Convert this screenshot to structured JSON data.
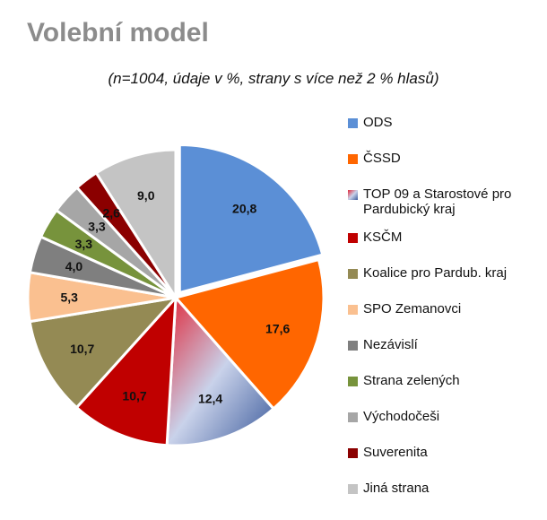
{
  "title": "Volební model",
  "subtitle": "(n=1004, údaje v %, strany s více než 2 % hlasů)",
  "chart_data": {
    "type": "pie",
    "title": "Volební model",
    "subtitle": "(n=1004, údaje v %, strany s více než 2 % hlasů)",
    "legend_position": "right",
    "slices": [
      {
        "label": "ODS",
        "value": 20.8,
        "display": "20,8",
        "color": "#5b8fd6"
      },
      {
        "label": "ČSSD",
        "value": 17.6,
        "display": "17,6",
        "color": "#ff6600"
      },
      {
        "label": "TOP 09 a Starostové pro Pardubický kraj",
        "value": 12.4,
        "display": "12,4",
        "color": "#c9d2ea",
        "gradient": [
          "#e0283a",
          "#c9d2ea",
          "#3b5a9b"
        ]
      },
      {
        "label": "KSČM",
        "value": 10.7,
        "display": "10,7",
        "color": "#c00000"
      },
      {
        "label": "Koalice pro Pardub. kraj",
        "value": 10.7,
        "display": "10,7",
        "color": "#948a54"
      },
      {
        "label": "SPO Zemanovci",
        "value": 5.3,
        "display": "5,3",
        "color": "#fac090"
      },
      {
        "label": "Nezávislí",
        "value": 4.0,
        "display": "4,0",
        "color": "#7f7f7f"
      },
      {
        "label": "Strana zelených",
        "value": 3.3,
        "display": "3,3",
        "color": "#77933c"
      },
      {
        "label": "Východočeši",
        "value": 3.3,
        "display": "3,3",
        "color": "#a6a6a6"
      },
      {
        "label": "Suverenita",
        "value": 2.6,
        "display": "2,6",
        "color": "#8b0000"
      },
      {
        "label": "Jiná strana",
        "value": 9.0,
        "display": "9,0",
        "color": "#c4c4c4"
      }
    ]
  }
}
